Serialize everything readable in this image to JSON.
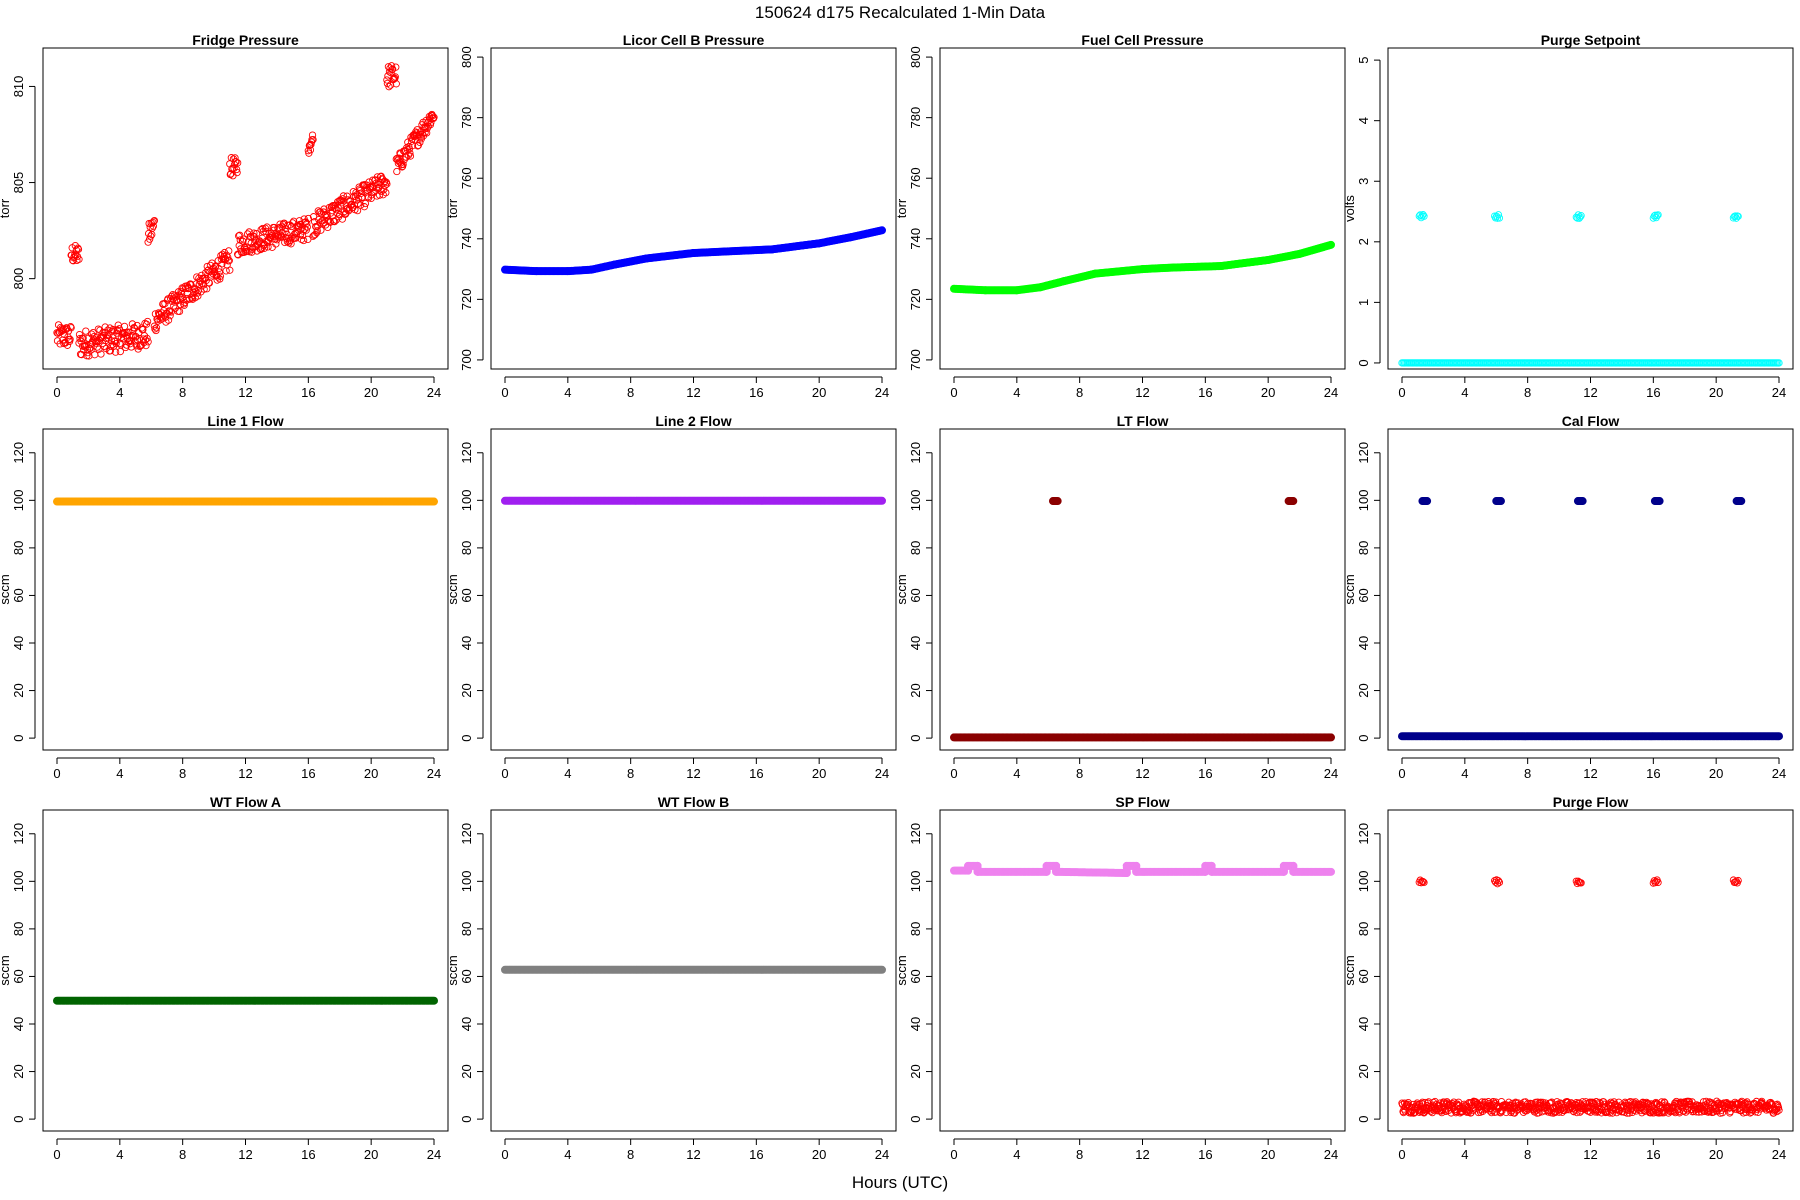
{
  "title": "150624   d175   Recalculated 1-Min Data",
  "xlabel": "Hours (UTC)",
  "chart_data": [
    {
      "type": "scatter",
      "title": "Fridge Pressure",
      "ylabel": "torr",
      "color": "#ff0000",
      "marker": "open-circle",
      "xlim": [
        0,
        24
      ],
      "ylim": [
        795.3,
        812
      ],
      "yticks": [
        800,
        805,
        810
      ],
      "xticks": [
        0,
        4,
        8,
        12,
        16,
        20,
        24
      ],
      "series": [
        {
          "segments": [
            {
              "x0": 0,
              "x1": 0.9,
              "y0": 797.0,
              "y1": 797.0,
              "spread": 0.6
            },
            {
              "x0": 0.9,
              "x1": 1.4,
              "y0": 801.3,
              "y1": 801.2,
              "spread": 0.5
            },
            {
              "x0": 1.4,
              "x1": 5.8,
              "y0": 796.6,
              "y1": 797.1,
              "spread": 0.7
            },
            {
              "x0": 5.8,
              "x1": 6.2,
              "y0": 802.2,
              "y1": 802.8,
              "spread": 0.6
            },
            {
              "x0": 6.2,
              "x1": 11.0,
              "y0": 797.8,
              "y1": 801.0,
              "spread": 0.6
            },
            {
              "x0": 11.0,
              "x1": 11.5,
              "y0": 805.8,
              "y1": 805.8,
              "spread": 0.5
            },
            {
              "x0": 11.5,
              "x1": 16.0,
              "y0": 801.8,
              "y1": 802.6,
              "spread": 0.6
            },
            {
              "x0": 16.0,
              "x1": 16.3,
              "y0": 807.0,
              "y1": 807.2,
              "spread": 0.5
            },
            {
              "x0": 16.3,
              "x1": 21.0,
              "y0": 802.8,
              "y1": 805.0,
              "spread": 0.6
            },
            {
              "x0": 21.0,
              "x1": 21.6,
              "y0": 810.5,
              "y1": 810.6,
              "spread": 0.6
            },
            {
              "x0": 21.6,
              "x1": 24.0,
              "y0": 805.8,
              "y1": 808.6,
              "spread": 0.5
            }
          ]
        }
      ]
    },
    {
      "type": "line",
      "title": "Licor Cell B Pressure",
      "ylabel": "torr",
      "color": "#0000ff",
      "marker": "filled",
      "xlim": [
        0,
        24
      ],
      "ylim": [
        697,
        803
      ],
      "yticks": [
        700,
        720,
        740,
        760,
        780,
        800
      ],
      "xticks": [
        0,
        4,
        8,
        12,
        16,
        20,
        24
      ],
      "series": [
        {
          "x": [
            0,
            2,
            4,
            5.5,
            7,
            9,
            12,
            14,
            17,
            20,
            22,
            24
          ],
          "y": [
            729.8,
            729.3,
            729.3,
            729.8,
            731.5,
            733.5,
            735.3,
            735.8,
            736.5,
            738.5,
            740.5,
            742.8
          ]
        }
      ]
    },
    {
      "type": "line",
      "title": "Fuel Cell Pressure",
      "ylabel": "torr",
      "color": "#00ff00",
      "marker": "filled",
      "xlim": [
        0,
        24
      ],
      "ylim": [
        697,
        803
      ],
      "yticks": [
        700,
        720,
        740,
        760,
        780,
        800
      ],
      "xticks": [
        0,
        4,
        8,
        12,
        16,
        20,
        24
      ],
      "series": [
        {
          "x": [
            0,
            2,
            4,
            5.5,
            7,
            9,
            12,
            14,
            17,
            20,
            22,
            24
          ],
          "y": [
            723.5,
            723.0,
            723.0,
            724.0,
            726.0,
            728.5,
            730.0,
            730.5,
            731.0,
            733.0,
            735.0,
            738.0
          ]
        }
      ]
    },
    {
      "type": "scatter",
      "title": "Purge Setpoint",
      "ylabel": "volts",
      "color": "#00ffff",
      "marker": "open-circle",
      "xlim": [
        0,
        24
      ],
      "ylim": [
        -0.1,
        5.2
      ],
      "yticks": [
        0,
        1,
        2,
        3,
        4,
        5
      ],
      "xticks": [
        0,
        4,
        8,
        12,
        16,
        20,
        24
      ],
      "series": [
        {
          "segments": [
            {
              "x0": 0,
              "x1": 24,
              "y0": 0,
              "y1": 0,
              "spread": 0
            }
          ],
          "spikes": [
            1.1,
            5.9,
            11.1,
            16.0,
            21.1
          ],
          "spike_value": 2.42
        }
      ]
    },
    {
      "type": "line",
      "title": "Line 1 Flow",
      "ylabel": "sccm",
      "color": "#ffa500",
      "marker": "filled",
      "xlim": [
        0,
        24
      ],
      "ylim": [
        -5,
        130
      ],
      "yticks": [
        0,
        20,
        40,
        60,
        80,
        100,
        120
      ],
      "xticks": [
        0,
        4,
        8,
        12,
        16,
        20,
        24
      ],
      "series": [
        {
          "x": [
            0,
            24
          ],
          "y": [
            99.5,
            99.5
          ]
        }
      ]
    },
    {
      "type": "line",
      "title": "Line 2 Flow",
      "ylabel": "sccm",
      "color": "#a020f0",
      "marker": "filled",
      "xlim": [
        0,
        24
      ],
      "ylim": [
        -5,
        130
      ],
      "yticks": [
        0,
        20,
        40,
        60,
        80,
        100,
        120
      ],
      "xticks": [
        0,
        4,
        8,
        12,
        16,
        20,
        24
      ],
      "series": [
        {
          "x": [
            0,
            24
          ],
          "y": [
            99.8,
            99.8
          ]
        }
      ]
    },
    {
      "type": "scatter",
      "title": "LT Flow",
      "ylabel": "sccm",
      "color": "#8b0000",
      "marker": "filled",
      "xlim": [
        0,
        24
      ],
      "ylim": [
        -5,
        130
      ],
      "yticks": [
        0,
        20,
        40,
        60,
        80,
        100,
        120
      ],
      "xticks": [
        0,
        4,
        8,
        12,
        16,
        20,
        24
      ],
      "series": [
        {
          "segments": [
            {
              "x0": 0,
              "x1": 24,
              "y0": 0.3,
              "y1": 0.3,
              "spread": 0
            }
          ],
          "spikes": [
            6.3,
            21.3
          ],
          "spike_value": 99.7
        }
      ]
    },
    {
      "type": "scatter",
      "title": "Cal Flow",
      "ylabel": "sccm",
      "color": "#00008b",
      "marker": "filled",
      "xlim": [
        0,
        24
      ],
      "ylim": [
        -5,
        130
      ],
      "yticks": [
        0,
        20,
        40,
        60,
        80,
        100,
        120
      ],
      "xticks": [
        0,
        4,
        8,
        12,
        16,
        20,
        24
      ],
      "series": [
        {
          "segments": [
            {
              "x0": 0,
              "x1": 24,
              "y0": 0.8,
              "y1": 0.8,
              "spread": 0
            }
          ],
          "spikes": [
            1.3,
            6.0,
            11.2,
            16.1,
            21.3
          ],
          "spike_value": 99.7
        }
      ]
    },
    {
      "type": "line",
      "title": "WT Flow A",
      "ylabel": "sccm",
      "color": "#006400",
      "marker": "filled",
      "xlim": [
        0,
        24
      ],
      "ylim": [
        -5,
        130
      ],
      "yticks": [
        0,
        20,
        40,
        60,
        80,
        100,
        120
      ],
      "xticks": [
        0,
        4,
        8,
        12,
        16,
        20,
        24
      ],
      "series": [
        {
          "x": [
            0,
            24
          ],
          "y": [
            49.8,
            49.8
          ]
        }
      ]
    },
    {
      "type": "line",
      "title": "WT Flow B",
      "ylabel": "sccm",
      "color": "#808080",
      "marker": "filled",
      "xlim": [
        0,
        24
      ],
      "ylim": [
        -5,
        130
      ],
      "yticks": [
        0,
        20,
        40,
        60,
        80,
        100,
        120
      ],
      "xticks": [
        0,
        4,
        8,
        12,
        16,
        20,
        24
      ],
      "series": [
        {
          "x": [
            0,
            24
          ],
          "y": [
            62.8,
            62.8
          ]
        }
      ]
    },
    {
      "type": "line",
      "title": "SP Flow",
      "ylabel": "sccm",
      "color": "#ee82ee",
      "marker": "filled",
      "xlim": [
        0,
        24
      ],
      "ylim": [
        -5,
        130
      ],
      "yticks": [
        0,
        20,
        40,
        60,
        80,
        100,
        120
      ],
      "xticks": [
        0,
        4,
        8,
        12,
        16,
        20,
        24
      ],
      "series": [
        {
          "x": [
            0,
            0.9,
            0.9,
            1.5,
            1.5,
            5.9,
            5.9,
            6.5,
            6.5,
            11.0,
            11.0,
            11.6,
            11.6,
            16.0,
            16.0,
            16.4,
            16.4,
            21.0,
            21.0,
            21.6,
            21.6,
            24.0
          ],
          "y": [
            104.5,
            104.5,
            106.5,
            106.5,
            104.0,
            104.0,
            106.5,
            106.5,
            104.0,
            103.5,
            106.5,
            106.5,
            104.0,
            104.0,
            106.5,
            106.5,
            104.0,
            104.0,
            106.5,
            106.5,
            104.0,
            104.0
          ]
        }
      ]
    },
    {
      "type": "scatter",
      "title": "Purge Flow",
      "ylabel": "sccm",
      "color": "#ff0000",
      "marker": "open-circle",
      "xlim": [
        0,
        24
      ],
      "ylim": [
        -5,
        130
      ],
      "yticks": [
        0,
        20,
        40,
        60,
        80,
        100,
        120
      ],
      "xticks": [
        0,
        4,
        8,
        12,
        16,
        20,
        24
      ],
      "series": [
        {
          "segments": [
            {
              "x0": 0,
              "x1": 24,
              "y0": 5.0,
              "y1": 5.0,
              "spread": 2.5
            }
          ],
          "spikes": [
            1.1,
            5.9,
            11.1,
            16.0,
            21.1
          ],
          "spike_value": 99.8
        }
      ]
    }
  ]
}
